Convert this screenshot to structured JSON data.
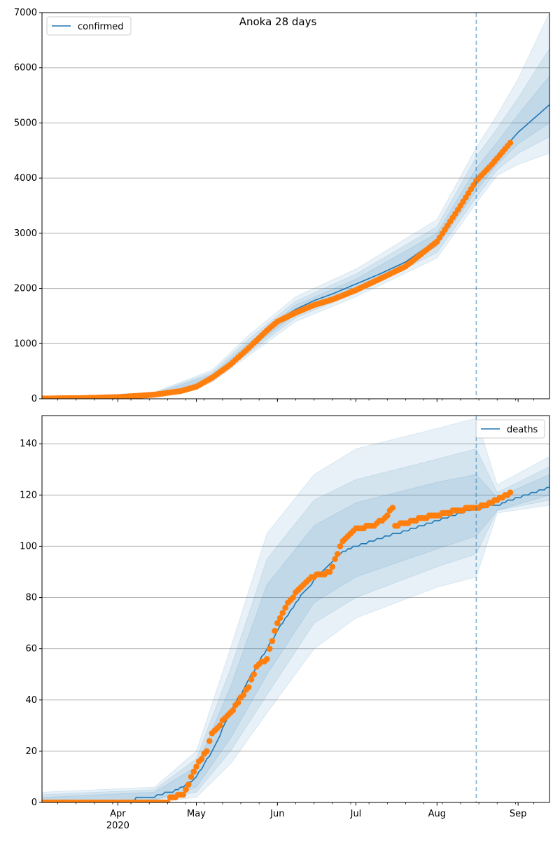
{
  "figure_title": "Anoka 28 days",
  "colors": {
    "model": "#1f77b4",
    "observed": "#ff7f0e",
    "band": "#1f77b4",
    "grid": "#b0b0b0",
    "cutoff": "#1f77b4"
  },
  "chart_data": [
    {
      "type": "line",
      "name": "confirmed-panel",
      "legend_label": "confirmed",
      "legend_position": "top-left",
      "xlim": [
        "2020-03-03",
        "2020-09-13"
      ],
      "ylim": [
        0,
        7000
      ],
      "yticks": [
        0,
        1000,
        2000,
        3000,
        4000,
        5000,
        6000,
        7000
      ],
      "grid_y": true,
      "forecast_start": "2020-08-16",
      "model_points": [
        [
          "2020-03-03",
          5
        ],
        [
          "2020-03-20",
          15
        ],
        [
          "2020-04-01",
          35
        ],
        [
          "2020-04-15",
          80
        ],
        [
          "2020-04-25",
          150
        ],
        [
          "2020-05-01",
          250
        ],
        [
          "2020-05-07",
          400
        ],
        [
          "2020-05-14",
          650
        ],
        [
          "2020-05-21",
          950
        ],
        [
          "2020-05-28",
          1250
        ],
        [
          "2020-06-01",
          1420
        ],
        [
          "2020-06-08",
          1620
        ],
        [
          "2020-06-15",
          1780
        ],
        [
          "2020-06-22",
          1900
        ],
        [
          "2020-07-01",
          2080
        ],
        [
          "2020-07-10",
          2260
        ],
        [
          "2020-07-20",
          2480
        ],
        [
          "2020-08-01",
          2880
        ],
        [
          "2020-08-10",
          3450
        ],
        [
          "2020-08-16",
          3950
        ],
        [
          "2020-08-24",
          4400
        ],
        [
          "2020-09-01",
          4830
        ],
        [
          "2020-09-13",
          5330
        ]
      ],
      "observed_points": [
        [
          "2020-03-03",
          5
        ],
        [
          "2020-03-20",
          15
        ],
        [
          "2020-04-01",
          30
        ],
        [
          "2020-04-15",
          75
        ],
        [
          "2020-04-25",
          140
        ],
        [
          "2020-05-01",
          220
        ],
        [
          "2020-05-07",
          380
        ],
        [
          "2020-05-14",
          620
        ],
        [
          "2020-05-21",
          920
        ],
        [
          "2020-05-28",
          1240
        ],
        [
          "2020-06-01",
          1400
        ],
        [
          "2020-06-08",
          1560
        ],
        [
          "2020-06-15",
          1700
        ],
        [
          "2020-06-22",
          1800
        ],
        [
          "2020-07-01",
          1970
        ],
        [
          "2020-07-10",
          2170
        ],
        [
          "2020-07-20",
          2400
        ],
        [
          "2020-08-01",
          2850
        ],
        [
          "2020-08-10",
          3500
        ],
        [
          "2020-08-16",
          3950
        ],
        [
          "2020-08-22",
          4250
        ],
        [
          "2020-08-29",
          4640
        ]
      ],
      "bands": [
        {
          "upper": [
            [
              "2020-03-03",
              10
            ],
            [
              "2020-04-15",
              120
            ],
            [
              "2020-05-07",
              520
            ],
            [
              "2020-05-21",
              1150
            ],
            [
              "2020-06-08",
              1850
            ],
            [
              "2020-07-01",
              2350
            ],
            [
              "2020-08-01",
              3250
            ],
            [
              "2020-08-16",
              4550
            ],
            [
              "2020-08-24",
              5150
            ],
            [
              "2020-09-01",
              5800
            ],
            [
              "2020-09-13",
              7000
            ]
          ],
          "lower": [
            [
              "2020-03-03",
              0
            ],
            [
              "2020-04-15",
              50
            ],
            [
              "2020-05-07",
              300
            ],
            [
              "2020-05-21",
              780
            ],
            [
              "2020-06-08",
              1400
            ],
            [
              "2020-07-01",
              1850
            ],
            [
              "2020-08-01",
              2550
            ],
            [
              "2020-08-16",
              3550
            ],
            [
              "2020-08-24",
              4050
            ],
            [
              "2020-09-01",
              4250
            ],
            [
              "2020-09-13",
              4450
            ]
          ]
        },
        {
          "upper": [
            [
              "2020-03-03",
              8
            ],
            [
              "2020-04-15",
              105
            ],
            [
              "2020-05-07",
              480
            ],
            [
              "2020-05-21",
              1080
            ],
            [
              "2020-06-08",
              1770
            ],
            [
              "2020-07-01",
              2260
            ],
            [
              "2020-08-01",
              3120
            ],
            [
              "2020-08-16",
              4380
            ],
            [
              "2020-08-24",
              4900
            ],
            [
              "2020-09-01",
              5450
            ],
            [
              "2020-09-13",
              6350
            ]
          ],
          "lower": [
            [
              "2020-03-03",
              1
            ],
            [
              "2020-04-15",
              60
            ],
            [
              "2020-05-07",
              330
            ],
            [
              "2020-05-21",
              830
            ],
            [
              "2020-06-08",
              1470
            ],
            [
              "2020-07-01",
              1920
            ],
            [
              "2020-08-01",
              2650
            ],
            [
              "2020-08-16",
              3650
            ],
            [
              "2020-08-24",
              4150
            ],
            [
              "2020-09-01",
              4450
            ],
            [
              "2020-09-13",
              4750
            ]
          ]
        },
        {
          "upper": [
            [
              "2020-03-03",
              6
            ],
            [
              "2020-04-15",
              92
            ],
            [
              "2020-05-07",
              440
            ],
            [
              "2020-05-21",
              1010
            ],
            [
              "2020-06-08",
              1700
            ],
            [
              "2020-07-01",
              2170
            ],
            [
              "2020-08-01",
              3000
            ],
            [
              "2020-08-16",
              4180
            ],
            [
              "2020-08-24",
              4650
            ],
            [
              "2020-09-01",
              5150
            ],
            [
              "2020-09-13",
              5850
            ]
          ],
          "lower": [
            [
              "2020-03-03",
              2
            ],
            [
              "2020-04-15",
              70
            ],
            [
              "2020-05-07",
              360
            ],
            [
              "2020-05-21",
              880
            ],
            [
              "2020-06-08",
              1540
            ],
            [
              "2020-07-01",
              2000
            ],
            [
              "2020-08-01",
              2760
            ],
            [
              "2020-08-16",
              3770
            ],
            [
              "2020-08-24",
              4250
            ],
            [
              "2020-09-01",
              4620
            ],
            [
              "2020-09-13",
              5000
            ]
          ]
        }
      ]
    },
    {
      "type": "line",
      "name": "deaths-panel",
      "legend_label": "deaths",
      "legend_position": "top-right",
      "xlim": [
        "2020-03-03",
        "2020-09-13"
      ],
      "ylim": [
        0,
        151
      ],
      "yticks": [
        0,
        20,
        40,
        60,
        80,
        100,
        120,
        140
      ],
      "grid_y": true,
      "forecast_start": "2020-08-16",
      "xticks": [
        {
          "date": "2020-04-01",
          "label": "Apr",
          "year": "2020"
        },
        {
          "date": "2020-05-01",
          "label": "May"
        },
        {
          "date": "2020-06-01",
          "label": "Jun"
        },
        {
          "date": "2020-07-01",
          "label": "Jul"
        },
        {
          "date": "2020-08-01",
          "label": "Aug"
        },
        {
          "date": "2020-09-01",
          "label": "Sep"
        }
      ],
      "model_points": [
        [
          "2020-03-03",
          0
        ],
        [
          "2020-04-07",
          0
        ],
        [
          "2020-04-08",
          2
        ],
        [
          "2020-04-15",
          2
        ],
        [
          "2020-04-16",
          3
        ],
        [
          "2020-04-21",
          4
        ],
        [
          "2020-04-26",
          6
        ],
        [
          "2020-05-01",
          10
        ],
        [
          "2020-05-07",
          20
        ],
        [
          "2020-05-14",
          35
        ],
        [
          "2020-05-21",
          48
        ],
        [
          "2020-05-28",
          60
        ],
        [
          "2020-06-04",
          72
        ],
        [
          "2020-06-11",
          82
        ],
        [
          "2020-06-18",
          90
        ],
        [
          "2020-06-25",
          97
        ],
        [
          "2020-07-01",
          100
        ],
        [
          "2020-07-10",
          103
        ],
        [
          "2020-07-20",
          106
        ],
        [
          "2020-08-01",
          110
        ],
        [
          "2020-08-10",
          113
        ],
        [
          "2020-08-16",
          115
        ],
        [
          "2020-08-24",
          116
        ],
        [
          "2020-09-01",
          119
        ],
        [
          "2020-09-13",
          123
        ]
      ],
      "observed_points": [
        [
          "2020-03-03",
          0
        ],
        [
          "2020-04-20",
          0
        ],
        [
          "2020-04-21",
          2
        ],
        [
          "2020-04-26",
          3
        ],
        [
          "2020-05-01",
          14
        ],
        [
          "2020-05-05",
          20
        ],
        [
          "2020-05-07",
          27
        ],
        [
          "2020-05-14",
          35
        ],
        [
          "2020-05-21",
          45
        ],
        [
          "2020-05-24",
          53
        ],
        [
          "2020-05-28",
          56
        ],
        [
          "2020-06-01",
          70
        ],
        [
          "2020-06-05",
          78
        ],
        [
          "2020-06-10",
          84
        ],
        [
          "2020-06-14",
          88
        ],
        [
          "2020-06-21",
          90
        ],
        [
          "2020-06-26",
          102
        ],
        [
          "2020-07-01",
          107
        ],
        [
          "2020-07-08",
          108
        ],
        [
          "2020-07-12",
          111
        ],
        [
          "2020-07-15",
          115
        ],
        [
          "2020-07-16",
          108
        ],
        [
          "2020-07-20",
          109
        ],
        [
          "2020-07-26",
          111
        ],
        [
          "2020-08-01",
          112
        ],
        [
          "2020-08-08",
          114
        ],
        [
          "2020-08-16",
          115
        ],
        [
          "2020-08-22",
          117
        ],
        [
          "2020-08-29",
          121
        ]
      ],
      "bands": [
        {
          "upper": [
            [
              "2020-03-03",
              4
            ],
            [
              "2020-04-15",
              6
            ],
            [
              "2020-05-01",
              20
            ],
            [
              "2020-05-14",
              60
            ],
            [
              "2020-05-28",
              105
            ],
            [
              "2020-06-15",
              128
            ],
            [
              "2020-07-01",
              138
            ],
            [
              "2020-08-01",
              146
            ],
            [
              "2020-08-16",
              150
            ],
            [
              "2020-08-24",
              124
            ],
            [
              "2020-09-13",
              135
            ]
          ],
          "lower": [
            [
              "2020-03-03",
              0
            ],
            [
              "2020-04-15",
              0
            ],
            [
              "2020-05-01",
              2
            ],
            [
              "2020-05-14",
              15
            ],
            [
              "2020-05-28",
              35
            ],
            [
              "2020-06-15",
              60
            ],
            [
              "2020-07-01",
              72
            ],
            [
              "2020-08-01",
              84
            ],
            [
              "2020-08-16",
              88
            ],
            [
              "2020-08-24",
              113
            ],
            [
              "2020-09-13",
              116
            ]
          ]
        },
        {
          "upper": [
            [
              "2020-03-03",
              3
            ],
            [
              "2020-04-15",
              5
            ],
            [
              "2020-05-01",
              17
            ],
            [
              "2020-05-14",
              52
            ],
            [
              "2020-05-28",
              95
            ],
            [
              "2020-06-15",
              118
            ],
            [
              "2020-07-01",
              126
            ],
            [
              "2020-08-01",
              134
            ],
            [
              "2020-08-16",
              138
            ],
            [
              "2020-08-24",
              121
            ],
            [
              "2020-09-13",
              131
            ]
          ],
          "lower": [
            [
              "2020-03-03",
              0
            ],
            [
              "2020-04-15",
              1
            ],
            [
              "2020-05-01",
              4
            ],
            [
              "2020-05-14",
              20
            ],
            [
              "2020-05-28",
              42
            ],
            [
              "2020-06-15",
              70
            ],
            [
              "2020-07-01",
              80
            ],
            [
              "2020-08-01",
              92
            ],
            [
              "2020-08-16",
              97
            ],
            [
              "2020-08-24",
              114
            ],
            [
              "2020-09-13",
              118
            ]
          ]
        },
        {
          "upper": [
            [
              "2020-03-03",
              2
            ],
            [
              "2020-04-15",
              4
            ],
            [
              "2020-05-01",
              14
            ],
            [
              "2020-05-14",
              45
            ],
            [
              "2020-05-28",
              85
            ],
            [
              "2020-06-15",
              108
            ],
            [
              "2020-07-01",
              117
            ],
            [
              "2020-08-01",
              125
            ],
            [
              "2020-08-16",
              128
            ],
            [
              "2020-08-24",
              119
            ],
            [
              "2020-09-13",
              128
            ]
          ],
          "lower": [
            [
              "2020-03-03",
              0
            ],
            [
              "2020-04-15",
              1
            ],
            [
              "2020-05-01",
              6
            ],
            [
              "2020-05-14",
              25
            ],
            [
              "2020-05-28",
              50
            ],
            [
              "2020-06-15",
              78
            ],
            [
              "2020-07-01",
              88
            ],
            [
              "2020-08-01",
              99
            ],
            [
              "2020-08-16",
              104
            ],
            [
              "2020-08-24",
              114
            ],
            [
              "2020-09-13",
              120
            ]
          ]
        }
      ]
    }
  ]
}
